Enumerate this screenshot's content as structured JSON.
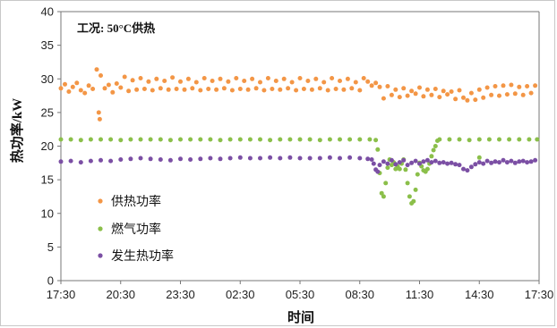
{
  "chart_data": {
    "type": "scatter",
    "annotation": "工况: 50°C供热",
    "xlabel": "时间",
    "ylabel": "热功率/kW",
    "ylim": [
      0,
      40
    ],
    "yticks": [
      "0",
      "5",
      "10",
      "15",
      "20",
      "25",
      "30",
      "35",
      "40"
    ],
    "xticks": [
      "17:30",
      "20:30",
      "23:30",
      "02:30",
      "05:30",
      "08:30",
      "11:30",
      "14:30",
      "17:30"
    ],
    "grid": false,
    "legend_position": "lower-left",
    "series": [
      {
        "name": "供热功率",
        "color": "#F39646",
        "points": [
          [
            0,
            28.6
          ],
          [
            0.2,
            29.2
          ],
          [
            0.4,
            28.1
          ],
          [
            0.6,
            28.8
          ],
          [
            0.8,
            29.4
          ],
          [
            1.0,
            28.3
          ],
          [
            1.2,
            27.9
          ],
          [
            1.4,
            29.0
          ],
          [
            1.6,
            28.5
          ],
          [
            1.8,
            31.4
          ],
          [
            1.9,
            25.0
          ],
          [
            1.95,
            24.0
          ],
          [
            2.0,
            30.5
          ],
          [
            2.2,
            28.6
          ],
          [
            2.4,
            29.1
          ],
          [
            2.6,
            28.0
          ],
          [
            2.8,
            29.3
          ],
          [
            3.0,
            28.7
          ],
          [
            3.2,
            30.3
          ],
          [
            3.4,
            28.2
          ],
          [
            3.6,
            29.8
          ],
          [
            3.8,
            28.4
          ],
          [
            4.0,
            30.1
          ],
          [
            4.2,
            28.5
          ],
          [
            4.4,
            29.6
          ],
          [
            4.6,
            28.3
          ],
          [
            4.8,
            30.0
          ],
          [
            5.0,
            28.6
          ],
          [
            5.2,
            29.7
          ],
          [
            5.4,
            28.4
          ],
          [
            5.6,
            30.2
          ],
          [
            5.8,
            28.5
          ],
          [
            6.0,
            29.6
          ],
          [
            6.2,
            28.4
          ],
          [
            6.4,
            30.0
          ],
          [
            6.6,
            28.6
          ],
          [
            6.8,
            29.5
          ],
          [
            7.0,
            28.3
          ],
          [
            7.2,
            30.1
          ],
          [
            7.4,
            28.5
          ],
          [
            7.6,
            29.7
          ],
          [
            7.8,
            28.4
          ],
          [
            8.0,
            30.0
          ],
          [
            8.2,
            28.6
          ],
          [
            8.4,
            29.6
          ],
          [
            8.6,
            28.3
          ],
          [
            8.8,
            30.1
          ],
          [
            9.0,
            28.5
          ],
          [
            9.2,
            29.7
          ],
          [
            9.4,
            28.4
          ],
          [
            9.6,
            30.0
          ],
          [
            9.8,
            28.6
          ],
          [
            10.0,
            29.5
          ],
          [
            10.2,
            28.3
          ],
          [
            10.4,
            30.1
          ],
          [
            10.6,
            28.5
          ],
          [
            10.8,
            29.7
          ],
          [
            11.0,
            28.4
          ],
          [
            11.2,
            30.0
          ],
          [
            11.4,
            28.6
          ],
          [
            11.6,
            29.5
          ],
          [
            11.8,
            28.3
          ],
          [
            12.0,
            30.1
          ],
          [
            12.2,
            28.5
          ],
          [
            12.4,
            29.7
          ],
          [
            12.6,
            28.4
          ],
          [
            12.8,
            30.0
          ],
          [
            13.0,
            28.6
          ],
          [
            13.2,
            29.5
          ],
          [
            13.4,
            28.3
          ],
          [
            13.6,
            30.1
          ],
          [
            13.8,
            28.5
          ],
          [
            14.0,
            29.7
          ],
          [
            14.2,
            28.4
          ],
          [
            14.4,
            30.0
          ],
          [
            14.6,
            28.6
          ],
          [
            14.8,
            29.5
          ],
          [
            15.0,
            28.3
          ],
          [
            15.2,
            30.1
          ],
          [
            15.4,
            29.6
          ],
          [
            15.6,
            29.0
          ],
          [
            15.8,
            29.4
          ],
          [
            16.0,
            28.8
          ],
          [
            16.2,
            27.1
          ],
          [
            16.4,
            28.9
          ],
          [
            16.6,
            27.6
          ],
          [
            16.8,
            28.4
          ],
          [
            17.0,
            27.3
          ],
          [
            17.2,
            28.6
          ],
          [
            17.4,
            27.5
          ],
          [
            17.6,
            28.2
          ],
          [
            17.8,
            27.8
          ],
          [
            18.0,
            28.7
          ],
          [
            18.2,
            27.4
          ],
          [
            18.4,
            28.4
          ],
          [
            18.6,
            27.6
          ],
          [
            18.8,
            28.5
          ],
          [
            19.0,
            27.3
          ],
          [
            19.2,
            28.2
          ],
          [
            19.4,
            27.7
          ],
          [
            19.6,
            28.1
          ],
          [
            19.8,
            27.0
          ],
          [
            20.0,
            28.3
          ],
          [
            20.2,
            27.2
          ],
          [
            20.4,
            26.8
          ],
          [
            20.6,
            27.9
          ],
          [
            20.8,
            26.9
          ],
          [
            21.0,
            28.4
          ],
          [
            21.2,
            27.2
          ],
          [
            21.4,
            28.7
          ],
          [
            21.6,
            27.6
          ],
          [
            21.8,
            28.9
          ],
          [
            22.0,
            27.5
          ],
          [
            22.2,
            29.0
          ],
          [
            22.4,
            27.7
          ],
          [
            22.6,
            29.1
          ],
          [
            22.8,
            27.8
          ],
          [
            23.0,
            28.8
          ],
          [
            23.2,
            27.6
          ],
          [
            23.4,
            28.9
          ],
          [
            23.6,
            27.9
          ],
          [
            23.8,
            29.0
          ]
        ]
      },
      {
        "name": "燃气功率",
        "color": "#8BBF4A",
        "points": [
          [
            0,
            21.0
          ],
          [
            0.5,
            21.0
          ],
          [
            1,
            20.9
          ],
          [
            1.5,
            21.0
          ],
          [
            2,
            21.0
          ],
          [
            2.5,
            21.0
          ],
          [
            3,
            20.9
          ],
          [
            3.5,
            21.0
          ],
          [
            4,
            21.0
          ],
          [
            4.5,
            21.0
          ],
          [
            5,
            21.0
          ],
          [
            5.5,
            20.9
          ],
          [
            6,
            21.0
          ],
          [
            6.5,
            21.0
          ],
          [
            7,
            21.0
          ],
          [
            7.5,
            21.0
          ],
          [
            8,
            20.9
          ],
          [
            8.5,
            21.0
          ],
          [
            9,
            21.0
          ],
          [
            9.5,
            21.0
          ],
          [
            10,
            21.0
          ],
          [
            10.5,
            20.9
          ],
          [
            11,
            21.0
          ],
          [
            11.5,
            21.0
          ],
          [
            12,
            21.0
          ],
          [
            12.5,
            21.0
          ],
          [
            13,
            20.9
          ],
          [
            13.5,
            21.0
          ],
          [
            14,
            21.0
          ],
          [
            14.5,
            21.0
          ],
          [
            15,
            21.0
          ],
          [
            15.5,
            21.0
          ],
          [
            15.8,
            20.9
          ],
          [
            15.9,
            19.5
          ],
          [
            16.0,
            16.0
          ],
          [
            16.1,
            13.0
          ],
          [
            16.2,
            12.5
          ],
          [
            16.3,
            14.5
          ],
          [
            16.4,
            16.8
          ],
          [
            16.5,
            18.0
          ],
          [
            16.6,
            17.2
          ],
          [
            16.7,
            17.6
          ],
          [
            16.8,
            16.6
          ],
          [
            16.9,
            17.0
          ],
          [
            17.0,
            16.6
          ],
          [
            17.1,
            17.4
          ],
          [
            17.2,
            18.0
          ],
          [
            17.3,
            16.5
          ],
          [
            17.4,
            14.5
          ],
          [
            17.5,
            12.5
          ],
          [
            17.6,
            11.5
          ],
          [
            17.7,
            11.8
          ],
          [
            17.8,
            13.5
          ],
          [
            17.9,
            15.8
          ],
          [
            18.0,
            17.5
          ],
          [
            18.1,
            17.0
          ],
          [
            18.2,
            16.4
          ],
          [
            18.3,
            16.2
          ],
          [
            18.4,
            16.6
          ],
          [
            18.5,
            17.4
          ],
          [
            18.6,
            18.5
          ],
          [
            18.7,
            19.4
          ],
          [
            18.8,
            20.0
          ],
          [
            18.9,
            20.8
          ],
          [
            19.0,
            21.0
          ],
          [
            19.5,
            21.0
          ],
          [
            20.0,
            21.0
          ],
          [
            20.5,
            20.9
          ],
          [
            21.0,
            21.0
          ],
          [
            21.5,
            21.0
          ],
          [
            22.0,
            21.0
          ],
          [
            22.5,
            21.0
          ],
          [
            23.0,
            21.0
          ],
          [
            23.5,
            21.0
          ],
          [
            23.9,
            21.0
          ],
          [
            21.0,
            18.3
          ]
        ]
      },
      {
        "name": "发生热功率",
        "color": "#7B4FA4",
        "points": [
          [
            0,
            17.7
          ],
          [
            0.5,
            17.8
          ],
          [
            1,
            17.6
          ],
          [
            1.5,
            17.8
          ],
          [
            2,
            17.9
          ],
          [
            2.5,
            17.8
          ],
          [
            3,
            18.0
          ],
          [
            3.5,
            18.1
          ],
          [
            4,
            18.2
          ],
          [
            4.5,
            18.1
          ],
          [
            5,
            18.0
          ],
          [
            5.5,
            17.9
          ],
          [
            6,
            18.1
          ],
          [
            6.5,
            18.0
          ],
          [
            7,
            18.1
          ],
          [
            7.5,
            18.2
          ],
          [
            8,
            18.1
          ],
          [
            8.5,
            18.2
          ],
          [
            9,
            18.3
          ],
          [
            9.5,
            18.2
          ],
          [
            10,
            18.2
          ],
          [
            10.5,
            18.3
          ],
          [
            11,
            18.2
          ],
          [
            11.5,
            18.3
          ],
          [
            12,
            18.2
          ],
          [
            12.5,
            18.2
          ],
          [
            13,
            18.2
          ],
          [
            13.5,
            18.3
          ],
          [
            14,
            18.2
          ],
          [
            14.5,
            18.3
          ],
          [
            15,
            18.2
          ],
          [
            15.4,
            18.1
          ],
          [
            15.6,
            18.0
          ],
          [
            15.7,
            17.4
          ],
          [
            15.8,
            16.5
          ],
          [
            15.9,
            16.2
          ],
          [
            16.0,
            17.2
          ],
          [
            16.2,
            17.7
          ],
          [
            16.4,
            17.4
          ],
          [
            16.6,
            17.9
          ],
          [
            16.8,
            17.3
          ],
          [
            17.0,
            17.6
          ],
          [
            17.2,
            17.9
          ],
          [
            17.4,
            17.2
          ],
          [
            17.6,
            17.5
          ],
          [
            17.8,
            17.8
          ],
          [
            18.0,
            17.4
          ],
          [
            18.2,
            17.7
          ],
          [
            18.4,
            17.9
          ],
          [
            18.6,
            17.6
          ],
          [
            18.8,
            17.8
          ],
          [
            19.0,
            17.5
          ],
          [
            19.2,
            17.6
          ],
          [
            19.4,
            17.4
          ],
          [
            19.6,
            17.5
          ],
          [
            19.8,
            17.3
          ],
          [
            20.0,
            17.2
          ],
          [
            20.2,
            16.6
          ],
          [
            20.4,
            16.4
          ],
          [
            20.6,
            16.9
          ],
          [
            20.8,
            17.3
          ],
          [
            21.0,
            17.6
          ],
          [
            21.2,
            17.4
          ],
          [
            21.4,
            17.8
          ],
          [
            21.6,
            17.5
          ],
          [
            21.8,
            17.7
          ],
          [
            22.0,
            17.6
          ],
          [
            22.2,
            17.9
          ],
          [
            22.4,
            17.6
          ],
          [
            22.6,
            17.8
          ],
          [
            22.8,
            17.5
          ],
          [
            23.0,
            17.7
          ],
          [
            23.2,
            17.8
          ],
          [
            23.4,
            17.6
          ],
          [
            23.6,
            17.7
          ],
          [
            23.8,
            17.9
          ]
        ]
      }
    ]
  }
}
